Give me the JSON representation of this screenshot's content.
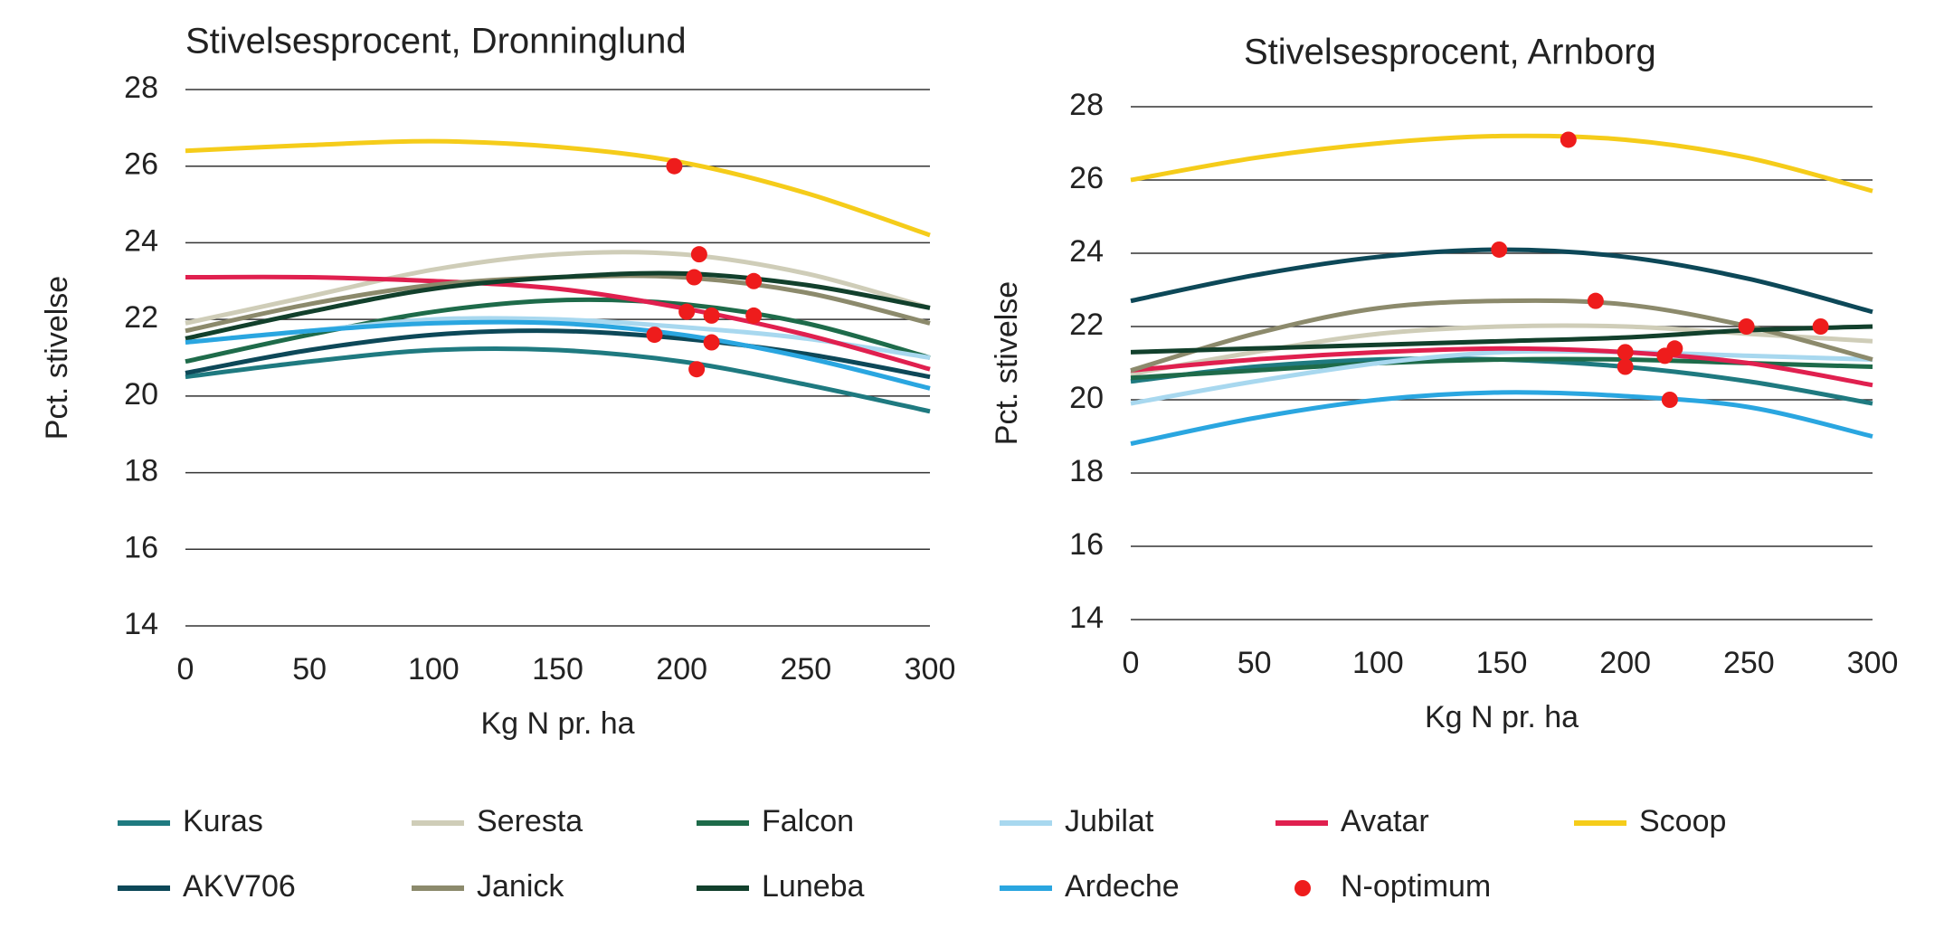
{
  "chart_data": [
    {
      "type": "line",
      "title": "Stivelsesprocent, Dronninglund",
      "xlabel": "Kg N pr. ha",
      "ylabel": "Pct. stivelse",
      "x": [
        0,
        50,
        100,
        150,
        200,
        250,
        300
      ],
      "xlim": [
        0,
        300
      ],
      "ylim": [
        14,
        28
      ],
      "xticks": [
        0,
        50,
        100,
        150,
        200,
        250,
        300
      ],
      "yticks": [
        14,
        16,
        18,
        20,
        22,
        24,
        26,
        28
      ],
      "grid": true,
      "series": [
        {
          "values": [
            20.5,
            20.9,
            21.2,
            21.2,
            20.9,
            20.3,
            19.6
          ]
        },
        {
          "values": [
            21.9,
            22.6,
            23.3,
            23.7,
            23.7,
            23.2,
            22.3
          ]
        },
        {
          "values": [
            20.9,
            21.6,
            22.2,
            22.5,
            22.4,
            21.9,
            21.0
          ]
        },
        {
          "values": [
            21.4,
            21.7,
            22.0,
            22.0,
            21.8,
            21.5,
            21.0
          ]
        },
        {
          "values": [
            23.1,
            23.1,
            23.0,
            22.8,
            22.3,
            21.6,
            20.7
          ]
        },
        {
          "values": [
            26.4,
            26.55,
            26.65,
            26.5,
            26.1,
            25.3,
            24.2
          ]
        },
        {
          "values": [
            20.6,
            21.2,
            21.6,
            21.7,
            21.5,
            21.1,
            20.5
          ]
        },
        {
          "values": [
            21.7,
            22.4,
            22.9,
            23.1,
            23.1,
            22.7,
            21.9
          ]
        },
        {
          "values": [
            21.5,
            22.2,
            22.8,
            23.1,
            23.2,
            22.9,
            22.3
          ]
        },
        {
          "values": [
            21.4,
            21.7,
            21.9,
            21.9,
            21.6,
            21.0,
            20.2
          ]
        }
      ],
      "points": {
        "x": [
          197,
          207,
          205,
          229,
          202,
          212,
          229,
          189,
          212,
          206
        ],
        "y": [
          26.0,
          23.7,
          23.1,
          23.0,
          22.2,
          22.1,
          22.1,
          21.6,
          21.4,
          20.7
        ]
      }
    },
    {
      "type": "line",
      "title": "Stivelsesprocent, Arnborg",
      "xlabel": "Kg N pr. ha",
      "ylabel": "Pct. stivelse",
      "x": [
        0,
        50,
        100,
        150,
        200,
        250,
        300
      ],
      "xlim": [
        0,
        300
      ],
      "ylim": [
        14,
        28
      ],
      "xticks": [
        0,
        50,
        100,
        150,
        200,
        250,
        300
      ],
      "yticks": [
        14,
        16,
        18,
        20,
        22,
        24,
        26,
        28
      ],
      "grid": true,
      "series": [
        {
          "values": [
            20.5,
            20.9,
            21.1,
            21.1,
            20.9,
            20.5,
            19.9
          ]
        },
        {
          "values": [
            20.7,
            21.3,
            21.8,
            22.0,
            22.0,
            21.8,
            21.6
          ]
        },
        {
          "values": [
            20.6,
            20.8,
            21.0,
            21.1,
            21.1,
            21.0,
            20.9
          ]
        },
        {
          "values": [
            19.9,
            20.5,
            21.0,
            21.3,
            21.3,
            21.2,
            21.1
          ]
        },
        {
          "values": [
            20.8,
            21.1,
            21.3,
            21.4,
            21.3,
            21.0,
            20.4
          ]
        },
        {
          "values": [
            26.0,
            26.6,
            27.0,
            27.2,
            27.1,
            26.6,
            25.7
          ]
        },
        {
          "values": [
            22.7,
            23.4,
            23.9,
            24.1,
            23.9,
            23.3,
            22.4
          ]
        },
        {
          "values": [
            20.8,
            21.8,
            22.5,
            22.7,
            22.6,
            22.0,
            21.1
          ]
        },
        {
          "values": [
            21.3,
            21.4,
            21.5,
            21.6,
            21.7,
            21.9,
            22.0
          ]
        },
        {
          "values": [
            18.8,
            19.5,
            20.0,
            20.2,
            20.1,
            19.8,
            19.0
          ]
        }
      ],
      "points": {
        "x": [
          177,
          149,
          188,
          249,
          279,
          200,
          200,
          216,
          220,
          218
        ],
        "y": [
          27.1,
          24.1,
          22.7,
          22.0,
          22.0,
          21.3,
          20.9,
          21.2,
          21.4,
          20.0
        ]
      }
    }
  ],
  "legend": [
    {
      "name": "Kuras",
      "color": "#1f7a80"
    },
    {
      "name": "Seresta",
      "color": "#cfcdb8"
    },
    {
      "name": "Falcon",
      "color": "#1e6b4a"
    },
    {
      "name": "Jubilat",
      "color": "#a8d8ef"
    },
    {
      "name": "Avatar",
      "color": "#e0204f"
    },
    {
      "name": "Scoop",
      "color": "#f5cc1a"
    },
    {
      "name": "AKV706",
      "color": "#0d4858"
    },
    {
      "name": "Janick",
      "color": "#8c8a6c"
    },
    {
      "name": "Luneba",
      "color": "#12402c"
    },
    {
      "name": "Ardeche",
      "color": "#2aa6e0"
    },
    {
      "name": "N-optimum",
      "color": "#ee1c1c"
    }
  ]
}
